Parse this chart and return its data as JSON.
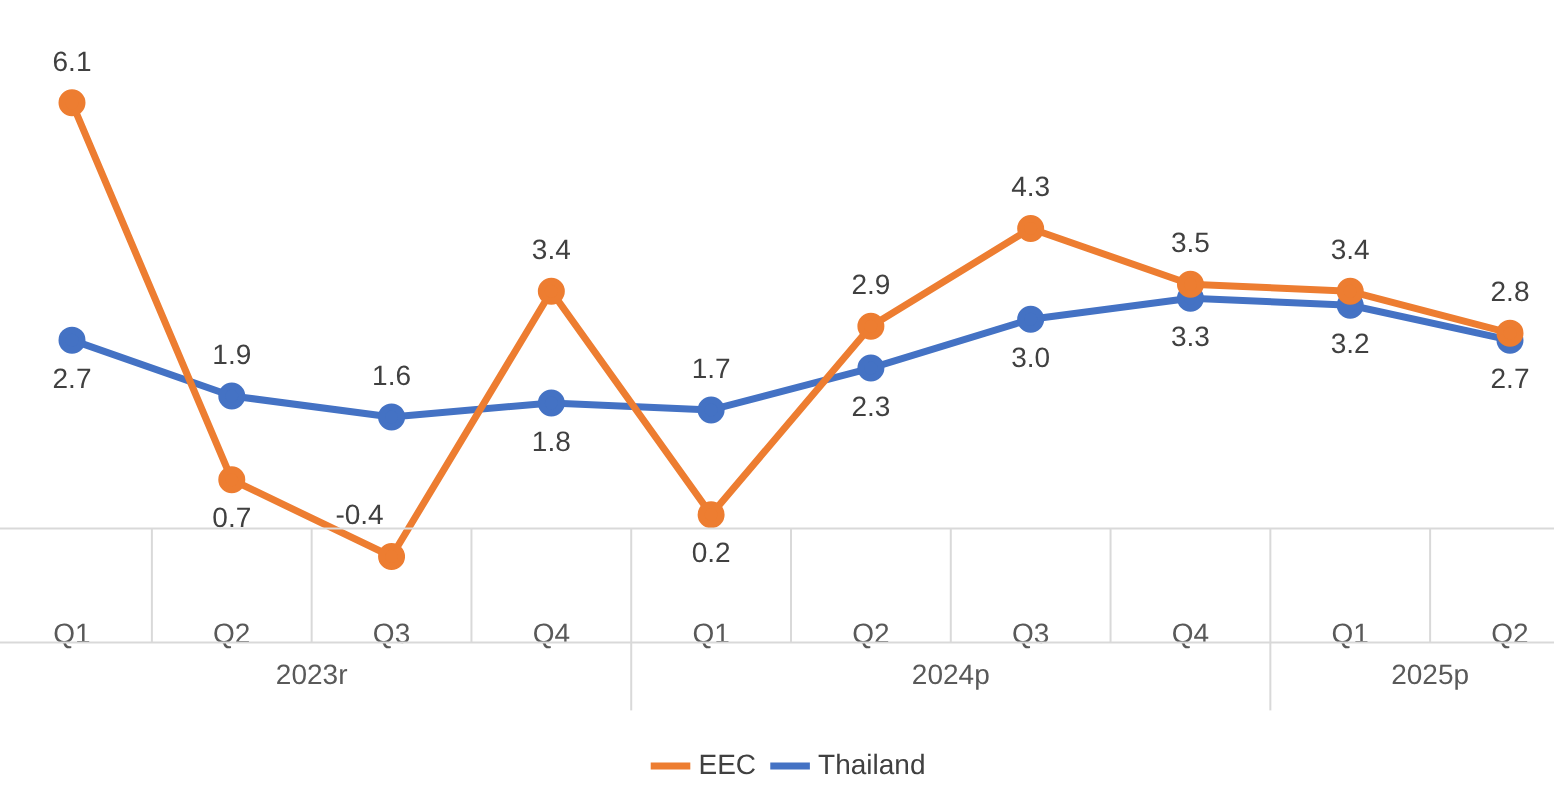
{
  "chart_data": {
    "type": "line",
    "categories": [
      "Q1",
      "Q2",
      "Q3",
      "Q4",
      "Q1",
      "Q2",
      "Q3",
      "Q4",
      "Q1",
      "Q2"
    ],
    "annotations": [
      "2023r",
      "2024p",
      "2025p"
    ],
    "series": [
      {
        "name": "EEC",
        "color": "#ed7d31",
        "values": [
          6.1,
          0.7,
          -0.4,
          3.4,
          0.2,
          2.9,
          4.3,
          3.5,
          3.4,
          2.8
        ],
        "value_labels": [
          "6.1",
          "0.7",
          "-0.4",
          "3.4",
          "0.2",
          "2.9",
          "4.3",
          "3.5",
          "3.4",
          "2.8"
        ]
      },
      {
        "name": "Thailand",
        "color": "#4472c4",
        "values": [
          2.7,
          1.9,
          1.6,
          1.8,
          1.7,
          2.3,
          3.0,
          3.3,
          3.2,
          2.7
        ],
        "value_labels": [
          "2.7",
          "1.9",
          "1.6",
          "1.8",
          "1.7",
          "2.3",
          "3.0",
          "3.3",
          "3.2",
          "2.7"
        ]
      }
    ],
    "tick_labels": "x",
    "legend": "bottom",
    "marker": "circle",
    "line_style": "solid"
  }
}
